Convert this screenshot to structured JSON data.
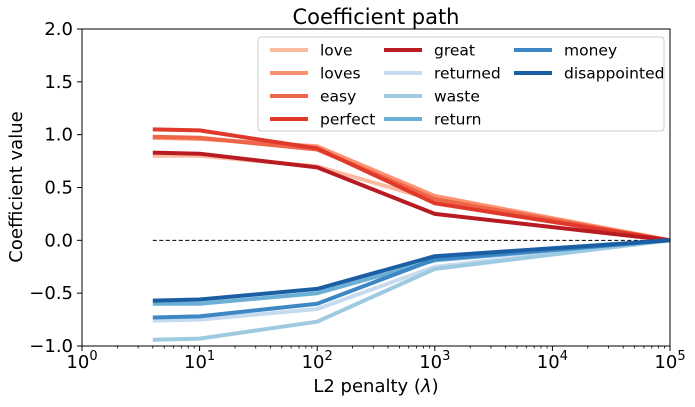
{
  "chart_data": {
    "type": "line",
    "title": "Coefficient path",
    "xlabel": "L2 penalty (λ)",
    "ylabel": "Coefficient value",
    "xscale": "log",
    "xlim": [
      1,
      100000
    ],
    "ylim": [
      -1.0,
      2.0
    ],
    "x_ticks": [
      {
        "value": 1,
        "base": "10",
        "exp": "0"
      },
      {
        "value": 10,
        "base": "10",
        "exp": "1"
      },
      {
        "value": 100,
        "base": "10",
        "exp": "2"
      },
      {
        "value": 1000,
        "base": "10",
        "exp": "3"
      },
      {
        "value": 10000,
        "base": "10",
        "exp": "4"
      },
      {
        "value": 100000,
        "base": "10",
        "exp": "5"
      }
    ],
    "y_ticks": [
      {
        "value": -1.0,
        "label": "−1.0"
      },
      {
        "value": -0.5,
        "label": "−0.5"
      },
      {
        "value": 0.0,
        "label": "0.0"
      },
      {
        "value": 0.5,
        "label": "0.5"
      },
      {
        "value": 1.0,
        "label": "1.0"
      },
      {
        "value": 1.5,
        "label": "1.5"
      },
      {
        "value": 2.0,
        "label": "2.0"
      }
    ],
    "x": [
      4,
      10,
      100,
      1000,
      100000
    ],
    "zero_line": {
      "x": [
        4,
        100000
      ],
      "y": 0,
      "style": "dashed"
    },
    "legend": {
      "placement": "top-right",
      "columns": 3
    },
    "series": [
      {
        "name": "love",
        "color": "#fcbba1",
        "values": [
          0.8,
          0.8,
          0.7,
          0.38,
          0.0
        ]
      },
      {
        "name": "loves",
        "color": "#fc9272",
        "values": [
          0.97,
          0.96,
          0.89,
          0.42,
          0.0
        ]
      },
      {
        "name": "easy",
        "color": "#ef6548",
        "values": [
          0.98,
          0.97,
          0.86,
          0.39,
          0.0
        ]
      },
      {
        "name": "perfect",
        "color": "#e0392b",
        "values": [
          1.05,
          1.04,
          0.87,
          0.35,
          0.0
        ]
      },
      {
        "name": "great",
        "color": "#b81b22",
        "values": [
          0.83,
          0.82,
          0.69,
          0.25,
          0.0
        ]
      },
      {
        "name": "returned",
        "color": "#c6dbef",
        "values": [
          -0.76,
          -0.75,
          -0.65,
          -0.25,
          0.0
        ]
      },
      {
        "name": "waste",
        "color": "#9ecae1",
        "values": [
          -0.94,
          -0.93,
          -0.77,
          -0.27,
          0.0
        ]
      },
      {
        "name": "return",
        "color": "#6baed6",
        "values": [
          -0.6,
          -0.6,
          -0.5,
          -0.19,
          0.0
        ]
      },
      {
        "name": "money",
        "color": "#3d87c4",
        "values": [
          -0.73,
          -0.72,
          -0.6,
          -0.18,
          0.0
        ]
      },
      {
        "name": "disappointed",
        "color": "#1a5ea4",
        "values": [
          -0.57,
          -0.56,
          -0.46,
          -0.15,
          0.0
        ]
      }
    ]
  }
}
